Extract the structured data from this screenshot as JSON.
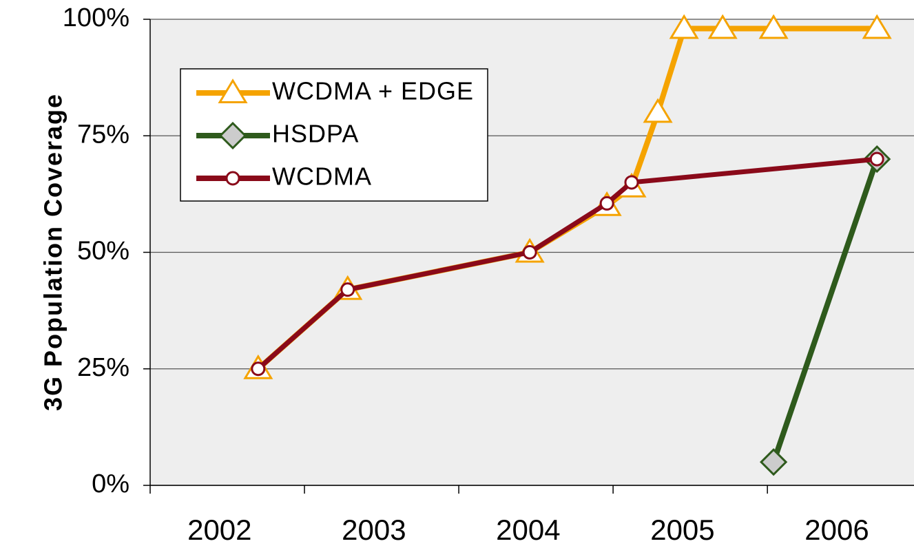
{
  "chart_data": {
    "type": "line",
    "y_label": "3G Population Coverage",
    "xlim": [
      2002,
      2006.95
    ],
    "xticks": [
      2002,
      2003,
      2004,
      2005,
      2006
    ],
    "ylim": [
      0,
      100
    ],
    "yticks": [
      {
        "value": 0,
        "label": "0%"
      },
      {
        "value": 25,
        "label": "25%"
      },
      {
        "value": 50,
        "label": "50%"
      },
      {
        "value": 75,
        "label": "75%"
      },
      {
        "value": 100,
        "label": "100%"
      }
    ],
    "grid": true,
    "legend": "upper left",
    "series": [
      {
        "name": "WCDMA + EDGE",
        "color": "#f5a300",
        "marker": "triangle",
        "x": [
          2002.7,
          2003.28,
          2004.46,
          2004.96,
          2005.12,
          2005.29,
          2005.46,
          2005.71,
          2006.04,
          2006.71
        ],
        "values": [
          25,
          42,
          50,
          60,
          64,
          80,
          98,
          98,
          98,
          98
        ]
      },
      {
        "name": "HSDPA",
        "color": "#2e5a1c",
        "marker": "diamond",
        "x": [
          2006.04,
          2006.71
        ],
        "values": [
          5,
          70
        ]
      },
      {
        "name": "WCDMA",
        "color": "#8a0a1a",
        "marker": "circle",
        "x": [
          2002.7,
          2003.28,
          2004.46,
          2004.96,
          2005.12,
          2006.71
        ],
        "values": [
          25,
          42,
          50,
          60.5,
          65,
          70
        ]
      }
    ]
  }
}
